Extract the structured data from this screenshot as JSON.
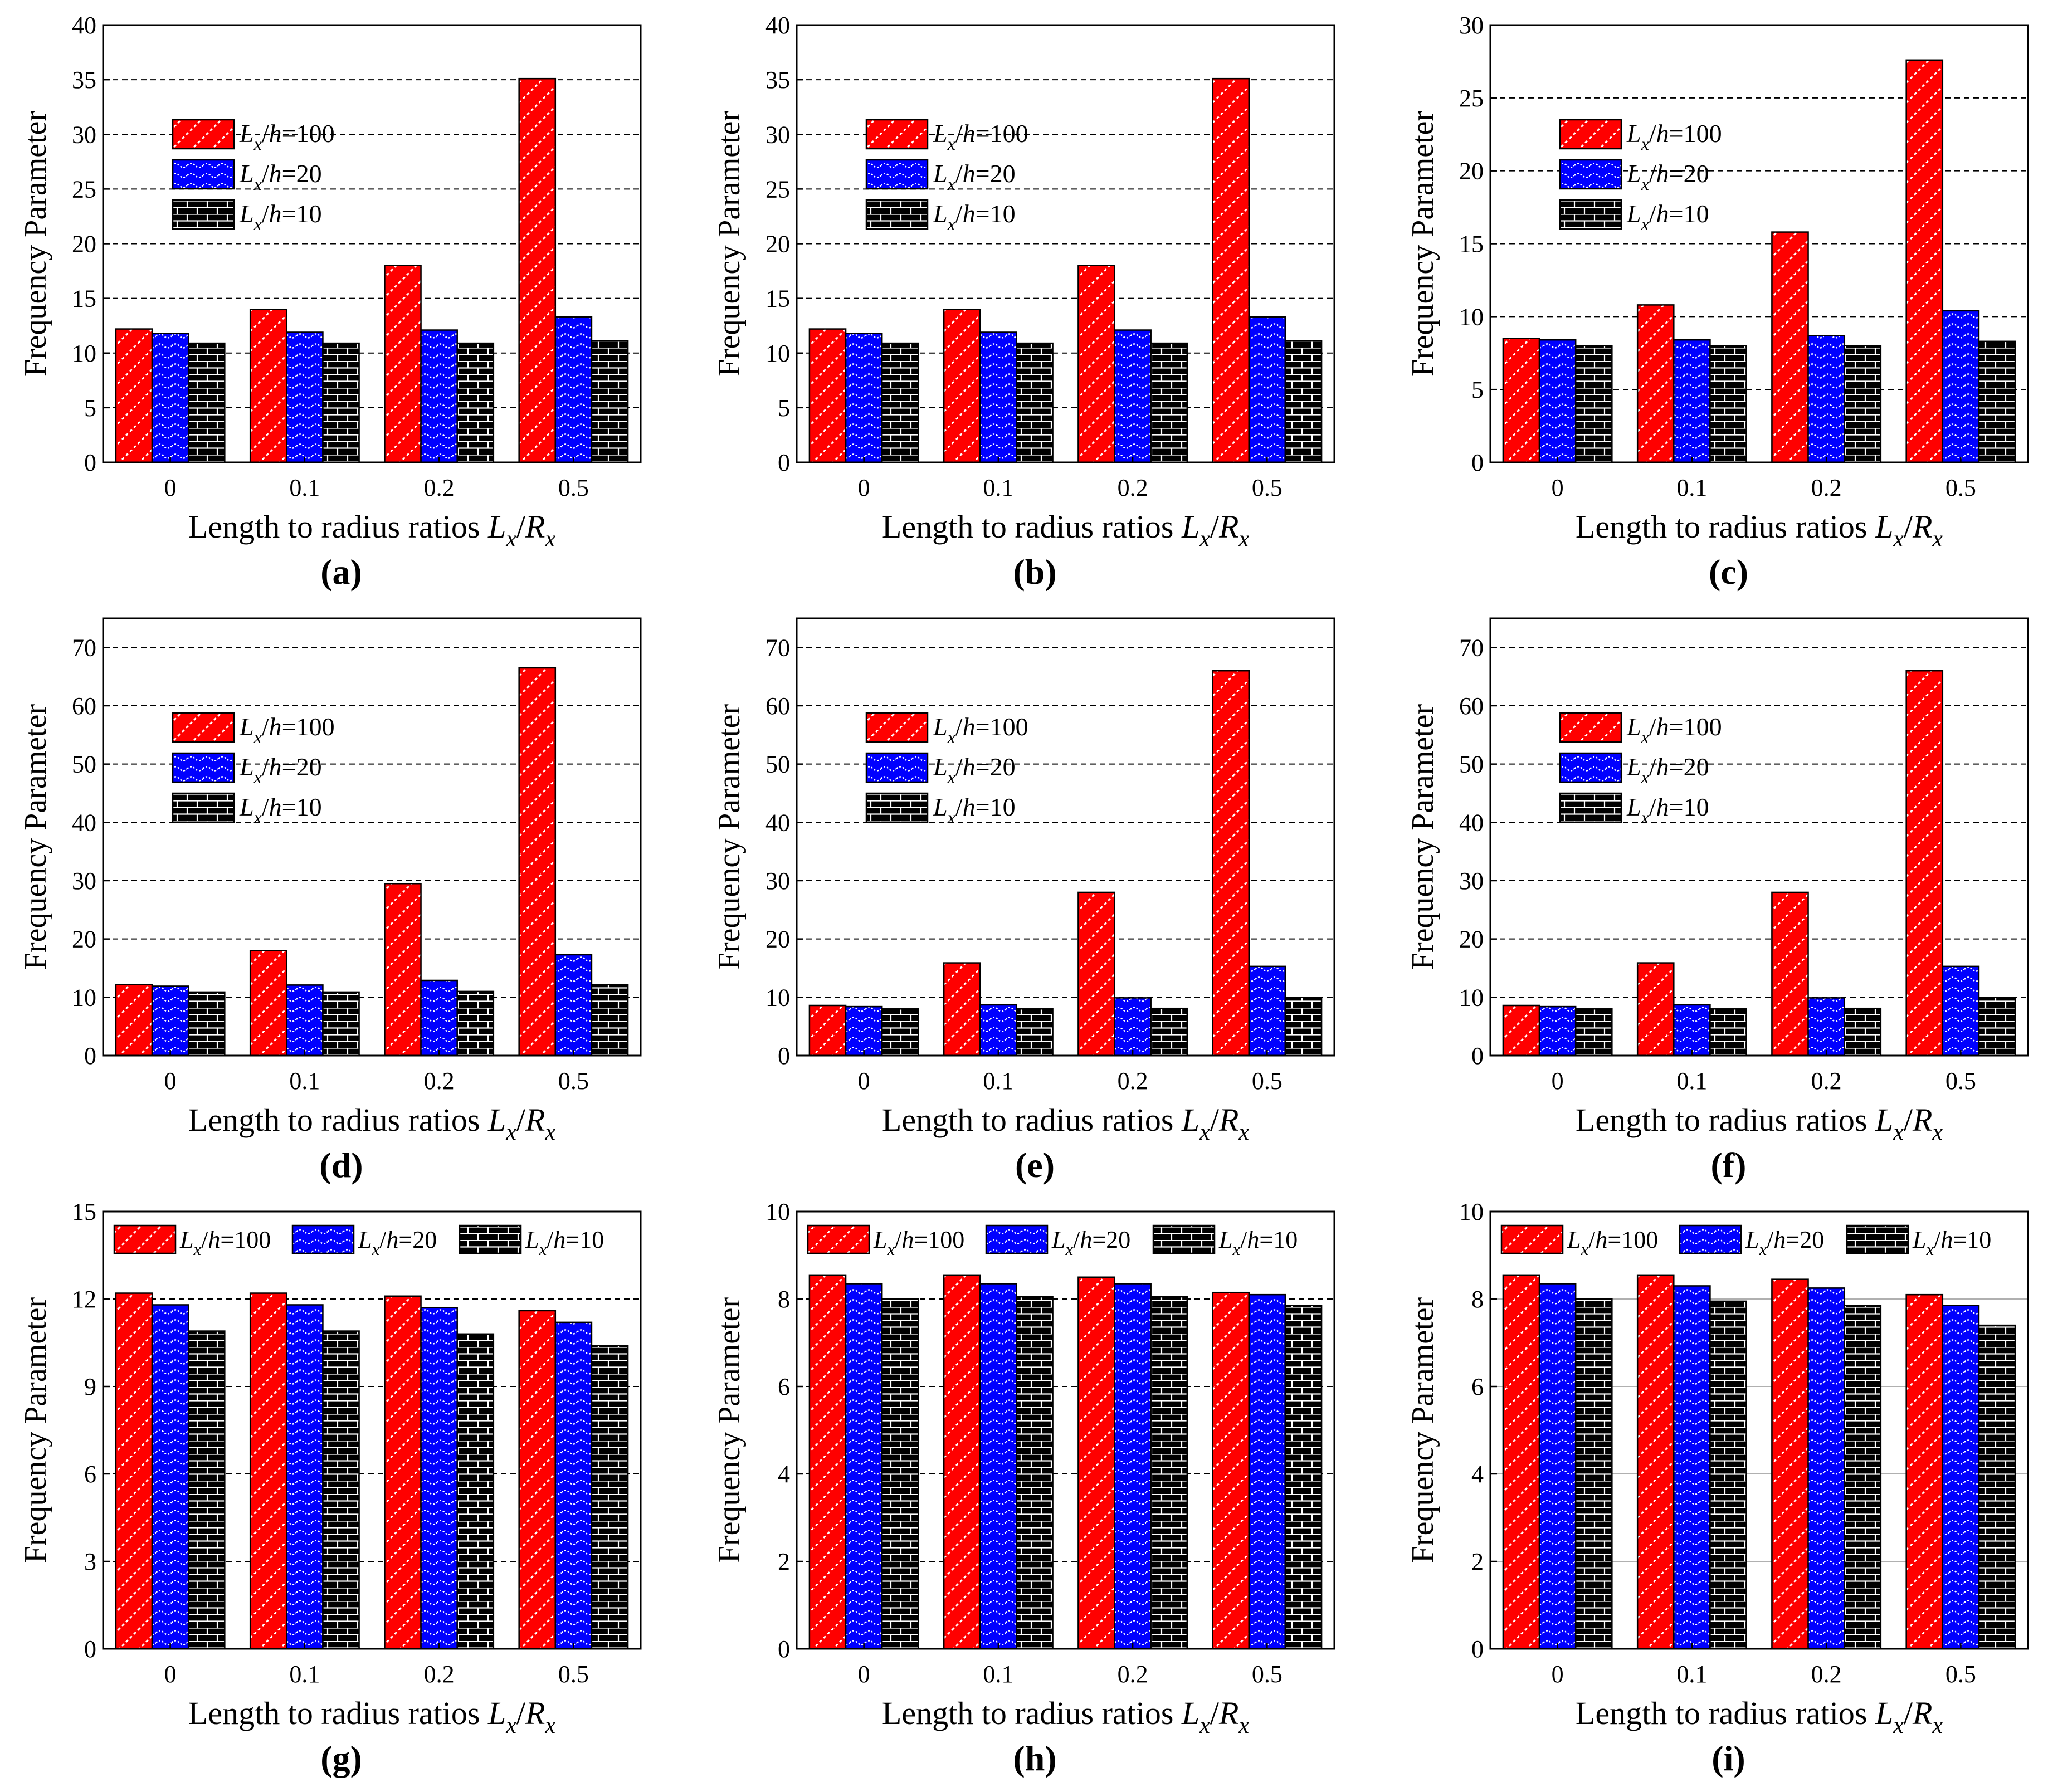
{
  "figure": {
    "series_names": [
      "Lx/h=100",
      "Lx/h=20",
      "Lx/h=10"
    ],
    "legend_text": [
      {
        "var": "L",
        "sub": "x",
        "slash": "/",
        "var2": "h",
        "val": "=100"
      },
      {
        "var": "L",
        "sub": "x",
        "slash": "/",
        "var2": "h",
        "val": "=20"
      },
      {
        "var": "L",
        "sub": "x",
        "slash": "/",
        "var2": "h",
        "val": "=10"
      }
    ],
    "colors": {
      "s0": "#ff0000",
      "s1": "#0000ff",
      "s2": "#000000"
    },
    "patterns": [
      "diagonal-dash",
      "wave",
      "brick"
    ]
  },
  "chart_data": [
    {
      "panel": "a",
      "label": "(a)",
      "type": "bar",
      "ylabel": "Frequency Parameter",
      "xlabel": "Length to radius ratios Lx/Rx",
      "categories": [
        "0",
        "0.1",
        "0.2",
        "0.5"
      ],
      "ylim": [
        0,
        40
      ],
      "yticks": [
        0,
        5,
        10,
        15,
        20,
        25,
        30,
        35,
        40
      ],
      "grid": "dashed",
      "legend": "upper-left-vertical",
      "series": [
        {
          "name": "Lx/h=100",
          "values": [
            12.2,
            14.0,
            18.0,
            35.1
          ]
        },
        {
          "name": "Lx/h=20",
          "values": [
            11.8,
            11.9,
            12.1,
            13.3
          ]
        },
        {
          "name": "Lx/h=10",
          "values": [
            10.9,
            10.9,
            10.9,
            11.1
          ]
        }
      ]
    },
    {
      "panel": "b",
      "label": "(b)",
      "type": "bar",
      "ylabel": "Frequency Parameter",
      "xlabel": "Length to radius ratios Lx/Rx",
      "categories": [
        "0",
        "0.1",
        "0.2",
        "0.5"
      ],
      "ylim": [
        0,
        40
      ],
      "yticks": [
        0,
        5,
        10,
        15,
        20,
        25,
        30,
        35,
        40
      ],
      "grid": "dashed",
      "legend": "upper-left-vertical",
      "series": [
        {
          "name": "Lx/h=100",
          "values": [
            12.2,
            14.0,
            18.0,
            35.1
          ]
        },
        {
          "name": "Lx/h=20",
          "values": [
            11.8,
            11.9,
            12.1,
            13.3
          ]
        },
        {
          "name": "Lx/h=10",
          "values": [
            10.9,
            10.9,
            10.9,
            11.1
          ]
        }
      ]
    },
    {
      "panel": "c",
      "label": "(c)",
      "type": "bar",
      "ylabel": "Frequency Parameter",
      "xlabel": "Length to radius ratios Lx/Rx",
      "categories": [
        "0",
        "0.1",
        "0.2",
        "0.5"
      ],
      "ylim": [
        0,
        30
      ],
      "yticks": [
        0,
        5,
        10,
        15,
        20,
        25,
        30
      ],
      "grid": "dashed",
      "legend": "upper-left-vertical",
      "series": [
        {
          "name": "Lx/h=100",
          "values": [
            8.5,
            10.8,
            15.8,
            27.6
          ]
        },
        {
          "name": "Lx/h=20",
          "values": [
            8.4,
            8.4,
            8.7,
            10.4
          ]
        },
        {
          "name": "Lx/h=10",
          "values": [
            8.0,
            8.0,
            8.0,
            8.3
          ]
        }
      ]
    },
    {
      "panel": "d",
      "label": "(d)",
      "type": "bar",
      "ylabel": "Frequency Parameter",
      "xlabel": "Length to radius ratios Lx/Rx",
      "categories": [
        "0",
        "0.1",
        "0.2",
        "0.5"
      ],
      "ylim": [
        0,
        75
      ],
      "yticks": [
        0,
        10,
        20,
        30,
        40,
        50,
        60,
        70
      ],
      "grid": "dashed",
      "legend": "upper-left-vertical",
      "series": [
        {
          "name": "Lx/h=100",
          "values": [
            12.2,
            18.0,
            29.5,
            66.5
          ]
        },
        {
          "name": "Lx/h=20",
          "values": [
            11.9,
            12.1,
            12.9,
            17.3
          ]
        },
        {
          "name": "Lx/h=10",
          "values": [
            10.9,
            10.9,
            11.0,
            12.2
          ]
        }
      ]
    },
    {
      "panel": "e",
      "label": "(e)",
      "type": "bar",
      "ylabel": "Frequency Parameter",
      "xlabel": "Length to radius ratios Lx/Rx",
      "categories": [
        "0",
        "0.1",
        "0.2",
        "0.5"
      ],
      "ylim": [
        0,
        75
      ],
      "yticks": [
        0,
        10,
        20,
        30,
        40,
        50,
        60,
        70
      ],
      "grid": "dashed",
      "legend": "upper-left-vertical",
      "series": [
        {
          "name": "Lx/h=100",
          "values": [
            8.6,
            15.9,
            28.0,
            66.0
          ]
        },
        {
          "name": "Lx/h=20",
          "values": [
            8.4,
            8.7,
            9.9,
            15.3
          ]
        },
        {
          "name": "Lx/h=10",
          "values": [
            8.0,
            8.0,
            8.1,
            10.0
          ]
        }
      ]
    },
    {
      "panel": "f",
      "label": "(f)",
      "type": "bar",
      "ylabel": "Frequency Parameter",
      "xlabel": "Length to radius ratios Lx/Rx",
      "categories": [
        "0",
        "0.1",
        "0.2",
        "0.5"
      ],
      "ylim": [
        0,
        75
      ],
      "yticks": [
        0,
        10,
        20,
        30,
        40,
        50,
        60,
        70
      ],
      "grid": "dashed",
      "legend": "upper-left-vertical",
      "series": [
        {
          "name": "Lx/h=100",
          "values": [
            8.6,
            15.9,
            28.0,
            66.0
          ]
        },
        {
          "name": "Lx/h=20",
          "values": [
            8.4,
            8.7,
            9.9,
            15.3
          ]
        },
        {
          "name": "Lx/h=10",
          "values": [
            8.0,
            8.0,
            8.1,
            10.0
          ]
        }
      ]
    },
    {
      "panel": "g",
      "label": "(g)",
      "type": "bar",
      "ylabel": "Frequency Parameter",
      "xlabel": "Length to radius ratios Lx/Rx",
      "categories": [
        "0",
        "0.1",
        "0.2",
        "0.5"
      ],
      "ylim": [
        0,
        15
      ],
      "yticks": [
        0,
        3,
        6,
        9,
        12,
        15
      ],
      "grid": "dashed",
      "legend": "top-horizontal",
      "series": [
        {
          "name": "Lx/h=100",
          "values": [
            12.2,
            12.2,
            12.1,
            11.6
          ]
        },
        {
          "name": "Lx/h=20",
          "values": [
            11.8,
            11.8,
            11.7,
            11.2
          ]
        },
        {
          "name": "Lx/h=10",
          "values": [
            10.9,
            10.9,
            10.8,
            10.4
          ]
        }
      ]
    },
    {
      "panel": "h",
      "label": "(h)",
      "type": "bar",
      "ylabel": "Frequency Parameter",
      "xlabel": "Length to radius ratios Lx/Rx",
      "categories": [
        "0",
        "0.1",
        "0.2",
        "0.5"
      ],
      "ylim": [
        0,
        10
      ],
      "yticks": [
        0,
        2,
        4,
        6,
        8,
        10
      ],
      "grid": "dashed",
      "legend": "top-horizontal",
      "series": [
        {
          "name": "Lx/h=100",
          "values": [
            8.55,
            8.55,
            8.5,
            8.15
          ]
        },
        {
          "name": "Lx/h=20",
          "values": [
            8.35,
            8.35,
            8.35,
            8.1
          ]
        },
        {
          "name": "Lx/h=10",
          "values": [
            8.0,
            8.05,
            8.05,
            7.85
          ]
        }
      ]
    },
    {
      "panel": "i",
      "label": "(i)",
      "type": "bar",
      "ylabel": "Frequency Parameter",
      "xlabel": "Length to radius ratios Lx/Rx",
      "categories": [
        "0",
        "0.1",
        "0.2",
        "0.5"
      ],
      "ylim": [
        0,
        10
      ],
      "yticks": [
        0,
        2,
        4,
        6,
        8,
        10
      ],
      "grid": "solid-light",
      "legend": "top-horizontal",
      "series": [
        {
          "name": "Lx/h=100",
          "values": [
            8.55,
            8.55,
            8.45,
            8.1
          ]
        },
        {
          "name": "Lx/h=20",
          "values": [
            8.35,
            8.3,
            8.25,
            7.85
          ]
        },
        {
          "name": "Lx/h=10",
          "values": [
            8.0,
            7.95,
            7.85,
            7.4
          ]
        }
      ]
    }
  ]
}
